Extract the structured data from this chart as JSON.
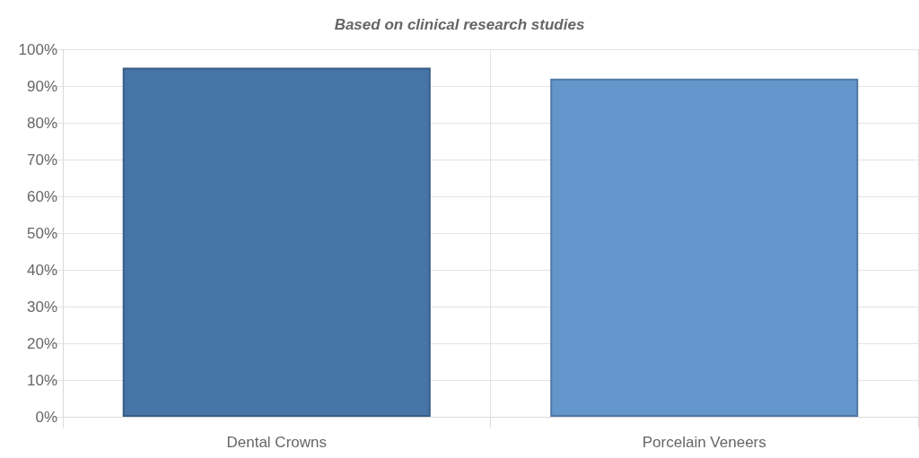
{
  "chart_data": {
    "type": "bar",
    "title": "Based on clinical research studies",
    "categories": [
      "Dental Crowns",
      "Porcelain Veneers"
    ],
    "values": [
      95,
      92
    ],
    "colors": [
      "#4674a6",
      "#6397cc"
    ],
    "ylim": [
      0,
      100
    ],
    "yticks": [
      {
        "value": 0,
        "label": "0%"
      },
      {
        "value": 10,
        "label": "10%"
      },
      {
        "value": 20,
        "label": "20%"
      },
      {
        "value": 30,
        "label": "30%"
      },
      {
        "value": 40,
        "label": "40%"
      },
      {
        "value": 50,
        "label": "50%"
      },
      {
        "value": 60,
        "label": "60%"
      },
      {
        "value": 70,
        "label": "70%"
      },
      {
        "value": 80,
        "label": "80%"
      },
      {
        "value": 90,
        "label": "90%"
      },
      {
        "value": 100,
        "label": "100%"
      }
    ],
    "grid": true
  }
}
